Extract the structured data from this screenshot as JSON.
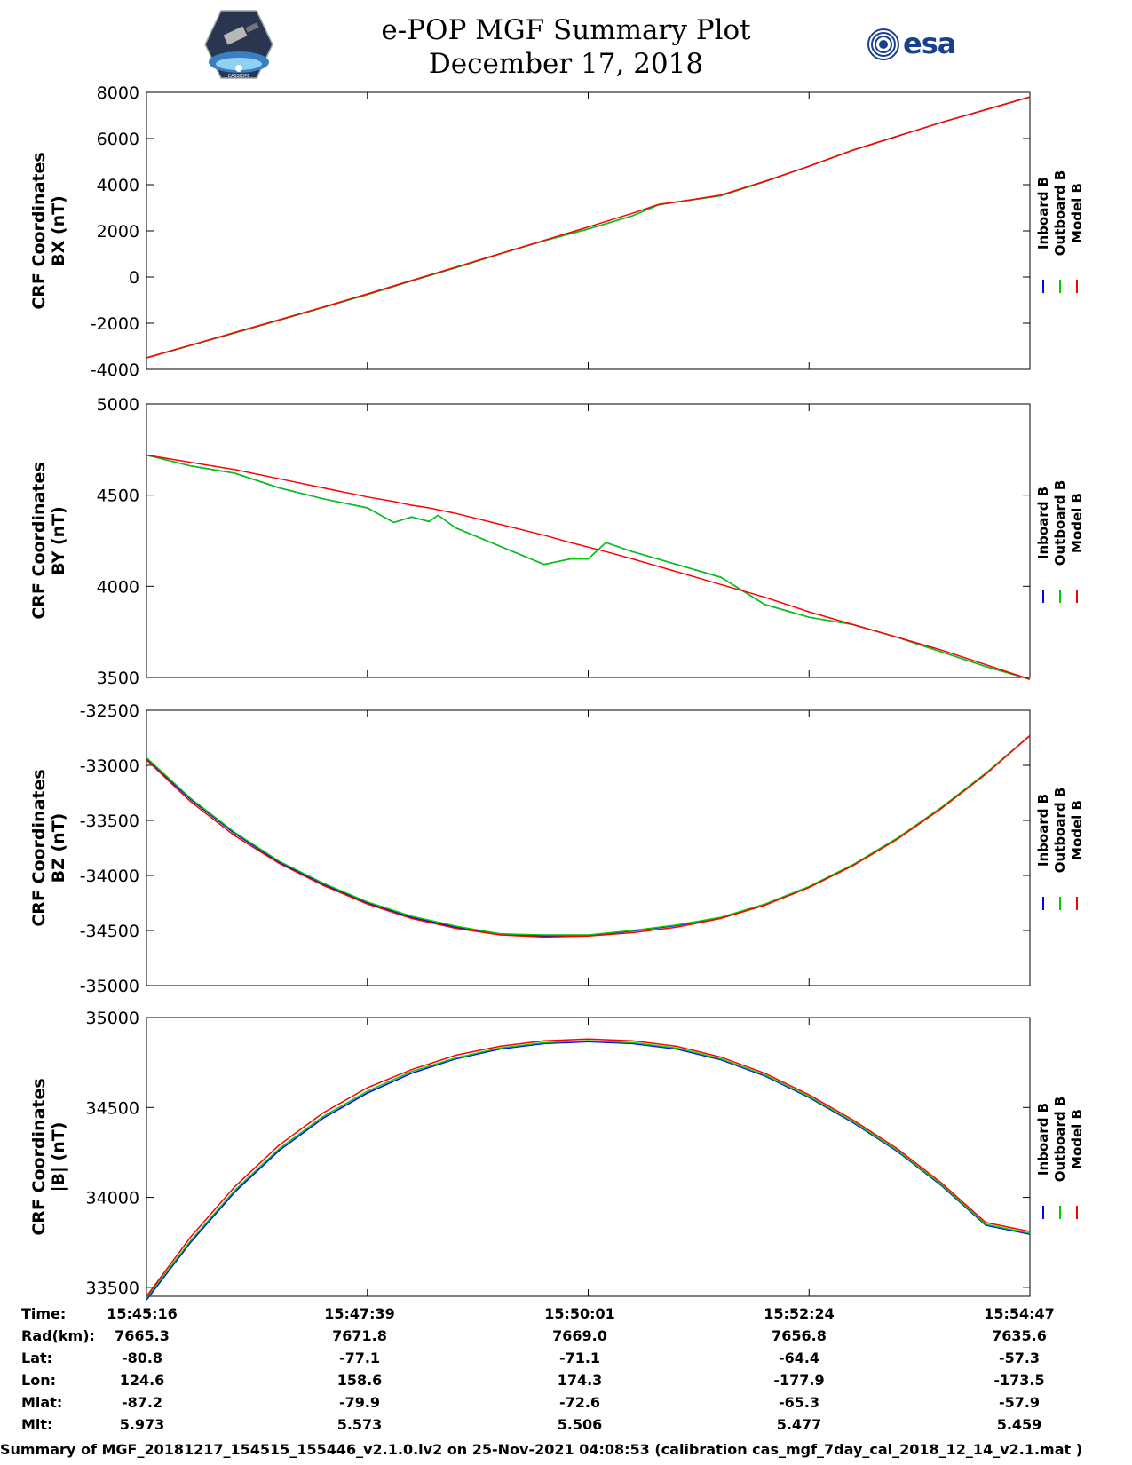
{
  "header": {
    "title": "e-POP MGF Summary Plot",
    "date": "December 17, 2018",
    "esa_logo_text": "esa",
    "left_logo_caption": "CASSIOPE"
  },
  "colors": {
    "inboard": "#0000ff",
    "outboard": "#00cc00",
    "model": "#ff0000"
  },
  "chart_data": [
    {
      "type": "line",
      "ylabel": [
        "CRF Coordinates",
        "BX (nT)"
      ],
      "ylim": [
        -4000,
        8000
      ],
      "yticks": [
        -4000,
        -2000,
        0,
        2000,
        4000,
        6000,
        8000
      ],
      "legend": [
        "Inboard B",
        "Outboard B",
        "Model B"
      ],
      "x": [
        0,
        0.05,
        0.1,
        0.15,
        0.2,
        0.25,
        0.3,
        0.35,
        0.4,
        0.45,
        0.5,
        0.55,
        0.58,
        0.6,
        0.65,
        0.7,
        0.75,
        0.8,
        0.85,
        0.9,
        0.95,
        1.0
      ],
      "series": [
        {
          "name": "Model B",
          "values": [
            -3500,
            -2950,
            -2400,
            -1850,
            -1300,
            -730,
            -150,
            430,
            1010,
            1590,
            2170,
            2760,
            3150,
            3250,
            3550,
            4150,
            4800,
            5500,
            6100,
            6700,
            7250,
            7800
          ]
        },
        {
          "name": "Outboard B",
          "values": [
            -3500,
            -2960,
            -2420,
            -1870,
            -1320,
            -760,
            -170,
            400,
            1000,
            1570,
            2080,
            2650,
            3130,
            3250,
            3520,
            4130,
            4800,
            5500,
            6100,
            6700,
            7250,
            7800
          ]
        },
        {
          "name": "Inboard B",
          "values": [
            -3500,
            -2960,
            -2420,
            -1870,
            -1320,
            -760,
            -170,
            400,
            1000,
            1570,
            2080,
            2650,
            3130,
            3250,
            3520,
            4130,
            4800,
            5500,
            6100,
            6700,
            7250,
            7800
          ]
        }
      ]
    },
    {
      "type": "line",
      "ylabel": [
        "CRF Coordinates",
        "BY (nT)"
      ],
      "ylim": [
        3500,
        5000
      ],
      "yticks": [
        3500,
        4000,
        4500,
        5000
      ],
      "legend": [
        "Inboard B",
        "Outboard B",
        "Model B"
      ],
      "x": [
        0,
        0.05,
        0.1,
        0.15,
        0.2,
        0.25,
        0.28,
        0.3,
        0.32,
        0.33,
        0.35,
        0.4,
        0.45,
        0.48,
        0.5,
        0.52,
        0.55,
        0.6,
        0.65,
        0.7,
        0.75,
        0.8,
        0.85,
        0.9,
        0.95,
        1.0
      ],
      "series": [
        {
          "name": "Model B",
          "values": [
            4720,
            4680,
            4640,
            4590,
            4540,
            4490,
            4465,
            4445,
            4430,
            4420,
            4400,
            4340,
            4280,
            4240,
            4215,
            4190,
            4150,
            4080,
            4010,
            3940,
            3860,
            3790,
            3720,
            3650,
            3570,
            3490
          ]
        },
        {
          "name": "Outboard B",
          "values": [
            4720,
            4660,
            4620,
            4540,
            4480,
            4430,
            4350,
            4380,
            4355,
            4390,
            4320,
            4220,
            4120,
            4150,
            4150,
            4240,
            4190,
            4120,
            4050,
            3900,
            3830,
            3790,
            3720,
            3640,
            3560,
            3490
          ]
        },
        {
          "name": "Inboard B",
          "values": [
            4720,
            4660,
            4620,
            4540,
            4480,
            4430,
            4350,
            4380,
            4355,
            4390,
            4320,
            4220,
            4120,
            4150,
            4150,
            4240,
            4190,
            4120,
            4050,
            3900,
            3830,
            3790,
            3720,
            3640,
            3560,
            3490
          ]
        }
      ]
    },
    {
      "type": "line",
      "ylabel": [
        "CRF Coordinates",
        "BZ (nT)"
      ],
      "ylim": [
        -35000,
        -32500
      ],
      "yticks": [
        -35000,
        -34500,
        -34000,
        -33500,
        -33000,
        -32500
      ],
      "legend": [
        "Inboard B",
        "Outboard B",
        "Model B"
      ],
      "x": [
        0,
        0.05,
        0.1,
        0.15,
        0.2,
        0.25,
        0.3,
        0.35,
        0.4,
        0.45,
        0.5,
        0.55,
        0.6,
        0.65,
        0.7,
        0.75,
        0.8,
        0.85,
        0.9,
        0.95,
        1.0
      ],
      "series": [
        {
          "name": "Model B",
          "values": [
            -32950,
            -33330,
            -33640,
            -33890,
            -34090,
            -34260,
            -34390,
            -34480,
            -34540,
            -34560,
            -34550,
            -34520,
            -34470,
            -34390,
            -34270,
            -34110,
            -33910,
            -33670,
            -33390,
            -33080,
            -32730
          ]
        },
        {
          "name": "Outboard B",
          "values": [
            -32930,
            -33300,
            -33610,
            -33870,
            -34070,
            -34240,
            -34370,
            -34460,
            -34530,
            -34540,
            -34540,
            -34500,
            -34450,
            -34380,
            -34260,
            -34100,
            -33900,
            -33660,
            -33380,
            -33070,
            -32730
          ]
        },
        {
          "name": "Inboard B",
          "values": [
            -32940,
            -33310,
            -33620,
            -33880,
            -34080,
            -34250,
            -34380,
            -34470,
            -34530,
            -34550,
            -34545,
            -34505,
            -34455,
            -34385,
            -34265,
            -34105,
            -33905,
            -33665,
            -33385,
            -33075,
            -32730
          ]
        }
      ]
    },
    {
      "type": "line",
      "ylabel": [
        "CRF Coordinates",
        "|B| (nT)"
      ],
      "ylim": [
        33450,
        35000
      ],
      "yticks": [
        33500,
        34000,
        34500,
        35000
      ],
      "legend": [
        "Inboard B",
        "Outboard B",
        "Model B"
      ],
      "x": [
        0,
        0.05,
        0.1,
        0.15,
        0.2,
        0.25,
        0.3,
        0.35,
        0.4,
        0.45,
        0.5,
        0.55,
        0.6,
        0.65,
        0.7,
        0.75,
        0.8,
        0.85,
        0.9,
        0.95,
        1.0
      ],
      "series": [
        {
          "name": "Model B",
          "values": [
            33450,
            33780,
            34060,
            34290,
            34470,
            34610,
            34710,
            34790,
            34840,
            34870,
            34880,
            34870,
            34840,
            34780,
            34690,
            34570,
            34430,
            34270,
            34080,
            33860,
            33810
          ]
        },
        {
          "name": "Outboard B",
          "values": [
            33440,
            33760,
            34040,
            34270,
            34450,
            34590,
            34700,
            34775,
            34830,
            34860,
            34870,
            34860,
            34830,
            34770,
            34680,
            34560,
            34420,
            34260,
            34070,
            33850,
            33800
          ]
        },
        {
          "name": "Inboard B",
          "values": [
            33430,
            33750,
            34030,
            34260,
            34440,
            34580,
            34690,
            34770,
            34825,
            34855,
            34865,
            34855,
            34825,
            34765,
            34675,
            34555,
            34415,
            34255,
            34065,
            33845,
            33795
          ]
        }
      ]
    }
  ],
  "footer": {
    "labels": [
      "Time:",
      "Rad(km):",
      "Lat:",
      "Lon:",
      "Mlat:",
      "Mlt:"
    ],
    "columns": [
      {
        "Time": "15:45:16",
        "Rad": "7665.3",
        "Lat": "-80.8",
        "Lon": "124.6",
        "Mlat": "-87.2",
        "Mlt": "5.973"
      },
      {
        "Time": "15:47:39",
        "Rad": "7671.8",
        "Lat": "-77.1",
        "Lon": "158.6",
        "Mlat": "-79.9",
        "Mlt": "5.573"
      },
      {
        "Time": "15:50:01",
        "Rad": "7669.0",
        "Lat": "-71.1",
        "Lon": "174.3",
        "Mlat": "-72.6",
        "Mlt": "5.506"
      },
      {
        "Time": "15:52:24",
        "Rad": "7656.8",
        "Lat": "-64.4",
        "Lon": "-177.9",
        "Mlat": "-65.3",
        "Mlt": "5.477"
      },
      {
        "Time": "15:54:47",
        "Rad": "7635.6",
        "Lat": "-57.3",
        "Lon": "-173.5",
        "Mlat": "-57.9",
        "Mlt": "5.459"
      }
    ],
    "summary": "Summary of MGF_20181217_154515_155446_v2.1.0.lv2 on 25-Nov-2021 04:08:53 (calibration cas_mgf_7day_cal_2018_12_14_v2.1.mat )"
  }
}
